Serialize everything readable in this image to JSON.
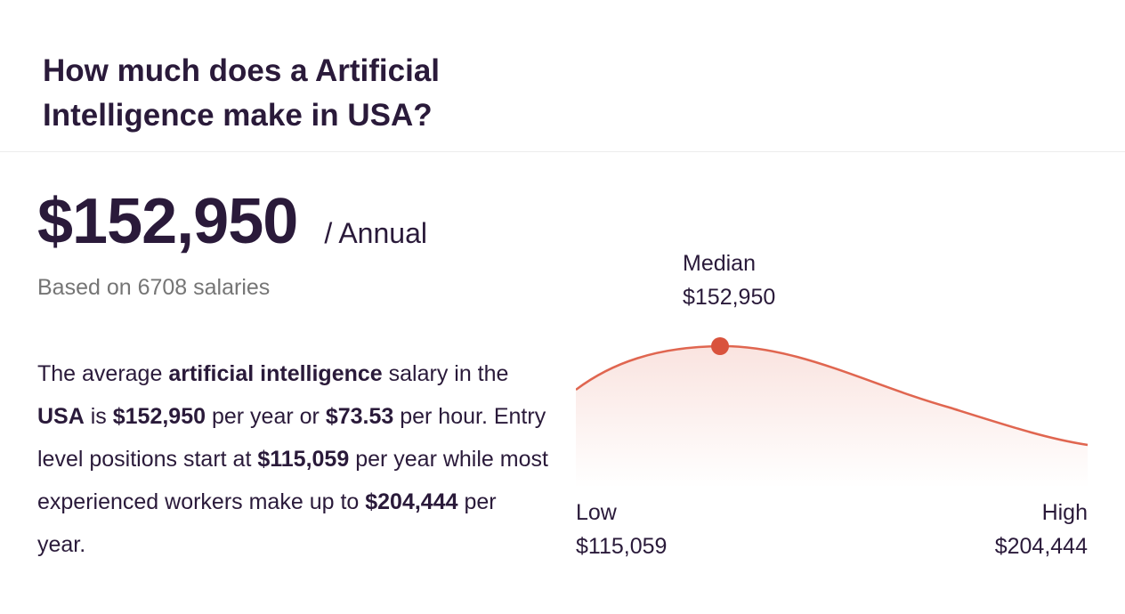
{
  "header": {
    "title": "How much does a Artificial Intelligence make in USA?"
  },
  "salary": {
    "amount": "$152,950",
    "period": "/ Annual",
    "based_on": "Based on 6708 salaries"
  },
  "description": {
    "t1": "The average ",
    "b1": "artificial intelligence",
    "t2": " salary in the ",
    "b2": "USA",
    "t3": " is ",
    "b3": "$152,950",
    "t4": " per year or ",
    "b4": "$73.53",
    "t5": " per hour. Entry level positions start at ",
    "b5": "$115,059",
    "t6": " per year while most experienced workers make up to ",
    "b6": "$204,444",
    "t7": " per year."
  },
  "distribution": {
    "median_label": "Median",
    "median_value": "$152,950",
    "low_label": "Low",
    "low_value": "$115,059",
    "high_label": "High",
    "high_value": "$204,444",
    "curve_color": "#e06650",
    "marker_color": "#d9533d"
  }
}
